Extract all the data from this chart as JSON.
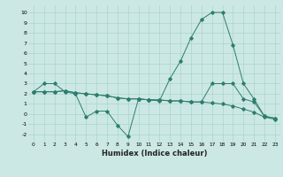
{
  "title": "",
  "xlabel": "Humidex (Indice chaleur)",
  "ylabel": "",
  "bg_color": "#cce8e4",
  "grid_color": "#aad4cc",
  "line_color": "#2d7d6e",
  "xlim": [
    -0.5,
    23.5
  ],
  "ylim": [
    -2.7,
    10.7
  ],
  "xticks": [
    0,
    1,
    2,
    3,
    4,
    5,
    6,
    7,
    8,
    9,
    10,
    11,
    12,
    13,
    14,
    15,
    16,
    17,
    18,
    19,
    20,
    21,
    22,
    23
  ],
  "yticks": [
    -2,
    -1,
    0,
    1,
    2,
    3,
    4,
    5,
    6,
    7,
    8,
    9,
    10
  ],
  "series": [
    [
      2.2,
      3.0,
      3.0,
      2.2,
      2.0,
      -0.3,
      0.3,
      0.3,
      -1.1,
      -2.2,
      1.5,
      1.4,
      1.3,
      3.5,
      5.2,
      7.5,
      9.3,
      10.0,
      10.0,
      6.8,
      3.0,
      1.5,
      -0.2,
      -0.4
    ],
    [
      2.2,
      2.2,
      2.2,
      2.3,
      2.1,
      2.0,
      1.9,
      1.8,
      1.6,
      1.5,
      1.5,
      1.4,
      1.4,
      1.3,
      1.3,
      1.2,
      1.2,
      1.1,
      1.0,
      0.8,
      0.5,
      0.2,
      -0.3,
      -0.5
    ],
    [
      2.2,
      2.2,
      2.2,
      2.3,
      2.1,
      2.0,
      1.9,
      1.8,
      1.6,
      1.5,
      1.5,
      1.4,
      1.4,
      1.3,
      1.3,
      1.2,
      1.2,
      3.0,
      3.0,
      3.0,
      1.5,
      1.2,
      -0.2,
      -0.4
    ]
  ]
}
